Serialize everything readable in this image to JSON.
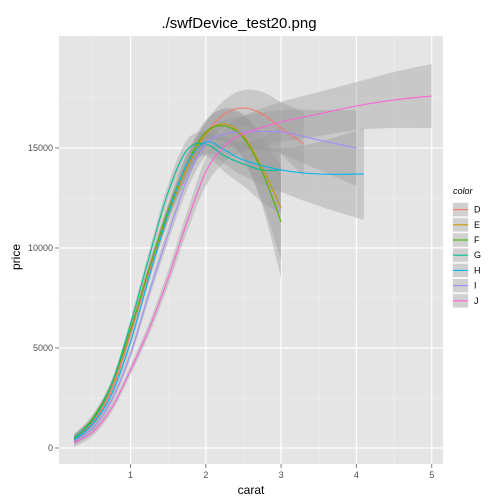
{
  "chart_data": {
    "type": "line",
    "title": "./swfDevice_test20.png",
    "xlabel": "carat",
    "ylabel": "price",
    "xlim": [
      0.05,
      5.15
    ],
    "ylim": [
      -800,
      20600
    ],
    "xticks": [
      1,
      2,
      3,
      4,
      5
    ],
    "yticks": [
      0,
      5000,
      10000,
      15000
    ],
    "grid": true,
    "legend": {
      "title": "color",
      "position": "right"
    },
    "colors": {
      "panel_bg": "#e5e5e5",
      "grid_major": "#ffffff",
      "grid_minor": "#f2f2f2",
      "ribbon": "#999999"
    },
    "series": [
      {
        "name": "D",
        "color": "#F8766D",
        "x": [
          0.25,
          0.5,
          0.75,
          1.0,
          1.25,
          1.5,
          1.75,
          2.0,
          2.25,
          2.5,
          2.75,
          3.0,
          3.3
        ],
        "y": [
          500,
          1300,
          2900,
          5700,
          8900,
          11800,
          14000,
          15700,
          16700,
          17000,
          16700,
          16000,
          15200
        ],
        "band": [
          200,
          200,
          200,
          250,
          300,
          400,
          500,
          600,
          700,
          900,
          1100,
          1300,
          1600
        ]
      },
      {
        "name": "E",
        "color": "#C49A00",
        "x": [
          0.25,
          0.5,
          0.75,
          1.0,
          1.25,
          1.5,
          1.75,
          2.0,
          2.25,
          2.5,
          2.75,
          3.0
        ],
        "y": [
          450,
          1400,
          3100,
          5900,
          9000,
          11700,
          14000,
          15700,
          16200,
          15600,
          14000,
          12000
        ],
        "band": [
          200,
          200,
          200,
          250,
          300,
          400,
          500,
          600,
          800,
          1100,
          1700,
          2600
        ]
      },
      {
        "name": "F",
        "color": "#53B400",
        "x": [
          0.25,
          0.5,
          0.75,
          1.0,
          1.25,
          1.5,
          1.75,
          2.0,
          2.25,
          2.5,
          2.75,
          3.0
        ],
        "y": [
          450,
          1500,
          3200,
          5900,
          9000,
          11900,
          14200,
          15800,
          16100,
          15500,
          13800,
          11300
        ],
        "band": [
          200,
          200,
          200,
          250,
          300,
          400,
          500,
          600,
          800,
          1100,
          1700,
          2800
        ]
      },
      {
        "name": "G",
        "color": "#00C094",
        "x": [
          0.25,
          0.5,
          0.75,
          1.0,
          1.25,
          1.5,
          1.75,
          2.0,
          2.25,
          2.5,
          2.75,
          3.0
        ],
        "y": [
          500,
          1400,
          3200,
          6200,
          9600,
          12800,
          14900,
          15200,
          14600,
          14200,
          13900,
          13900
        ],
        "band": [
          200,
          200,
          200,
          250,
          300,
          400,
          500,
          600,
          800,
          1100,
          1600,
          2200
        ]
      },
      {
        "name": "H",
        "color": "#00B6EB",
        "x": [
          0.25,
          0.5,
          0.75,
          1.0,
          1.25,
          1.5,
          1.75,
          2.0,
          2.25,
          2.5,
          3.0,
          3.5,
          4.1
        ],
        "y": [
          400,
          1200,
          2700,
          5300,
          8600,
          11700,
          14200,
          15300,
          14900,
          14400,
          13900,
          13700,
          13700
        ],
        "band": [
          200,
          200,
          200,
          250,
          300,
          400,
          500,
          600,
          700,
          800,
          1100,
          1600,
          2300
        ]
      },
      {
        "name": "I",
        "color": "#A58AFF",
        "x": [
          0.25,
          0.5,
          0.75,
          1.0,
          1.25,
          1.5,
          1.75,
          2.0,
          2.25,
          2.5,
          3.0,
          3.5,
          4.0
        ],
        "y": [
          350,
          1000,
          2400,
          4700,
          7800,
          10700,
          13400,
          15200,
          15700,
          15800,
          15800,
          15400,
          15000
        ],
        "band": [
          200,
          200,
          200,
          250,
          300,
          400,
          500,
          600,
          700,
          800,
          1100,
          1500,
          1900
        ]
      },
      {
        "name": "J",
        "color": "#FB61D7",
        "x": [
          0.25,
          0.5,
          0.75,
          1.0,
          1.25,
          1.5,
          1.75,
          2.0,
          2.25,
          2.5,
          3.0,
          3.5,
          4.0,
          4.5,
          5.0
        ],
        "y": [
          250,
          800,
          2000,
          3900,
          6000,
          8500,
          11300,
          13800,
          15100,
          15700,
          16300,
          16700,
          17100,
          17400,
          17600
        ],
        "band": [
          200,
          200,
          200,
          250,
          300,
          400,
          500,
          700,
          800,
          900,
          1000,
          1100,
          1200,
          1400,
          1600
        ]
      }
    ]
  }
}
